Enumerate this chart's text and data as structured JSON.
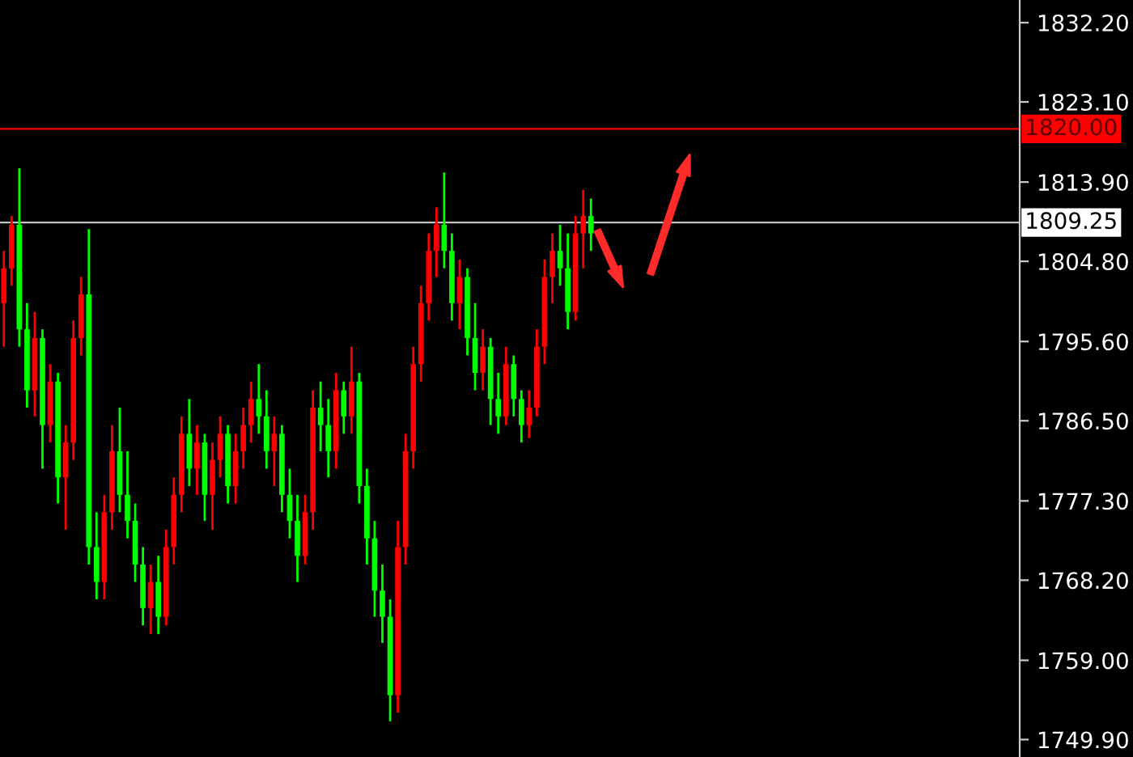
{
  "chart_data": {
    "type": "candlestick",
    "categories": [
      null,
      null,
      null,
      null,
      null,
      null,
      null,
      null,
      null,
      null,
      null,
      null,
      null,
      null,
      null,
      null,
      null,
      null,
      null,
      null,
      null,
      null,
      null,
      null,
      null,
      null,
      null,
      null,
      null,
      null,
      null,
      null,
      null,
      null,
      null,
      null,
      null,
      null,
      null,
      null,
      null,
      null,
      null,
      null,
      null,
      null,
      null,
      null,
      null,
      null,
      null,
      null,
      null,
      null,
      null,
      null,
      null,
      null,
      null,
      null,
      null,
      null,
      null,
      null,
      null,
      null,
      null,
      null,
      null,
      null,
      null,
      null,
      null,
      null,
      null,
      null,
      null,
      null,
      null,
      null,
      null,
      null,
      null,
      null,
      null,
      null,
      null,
      null,
      null,
      null,
      null,
      null,
      null,
      null,
      null,
      null,
      null,
      null,
      null,
      null,
      null,
      null,
      null,
      null,
      null,
      null,
      null,
      null,
      null,
      null,
      null,
      null,
      null,
      null,
      null,
      null,
      null,
      null,
      null,
      null,
      null,
      null,
      null,
      null,
      null,
      null,
      null,
      null,
      null,
      null,
      null,
      null
    ],
    "ohlc": [
      [
        1800,
        1806,
        1795,
        1804
      ],
      [
        1804,
        1810,
        1802,
        1809
      ],
      [
        1809,
        1815.5,
        1795,
        1797
      ],
      [
        1797,
        1800,
        1788,
        1790
      ],
      [
        1790,
        1799,
        1787,
        1796
      ],
      [
        1796,
        1797,
        1781,
        1786
      ],
      [
        1786,
        1793,
        1784,
        1791
      ],
      [
        1791,
        1792,
        1777,
        1780
      ],
      [
        1780,
        1786,
        1774,
        1784
      ],
      [
        1784,
        1798,
        1782,
        1796
      ],
      [
        1796,
        1803,
        1794,
        1801
      ],
      [
        1801,
        1808.5,
        1770,
        1772
      ],
      [
        1772,
        1776,
        1766,
        1768
      ],
      [
        1768,
        1778,
        1766,
        1776
      ],
      [
        1776,
        1786,
        1774,
        1783
      ],
      [
        1783,
        1788,
        1776,
        1778
      ],
      [
        1778,
        1783,
        1773,
        1775
      ],
      [
        1775,
        1777,
        1768,
        1770
      ],
      [
        1770,
        1772,
        1763,
        1765
      ],
      [
        1765,
        1770,
        1762,
        1768
      ],
      [
        1768,
        1771,
        1762,
        1764
      ],
      [
        1764,
        1774,
        1763,
        1772
      ],
      [
        1772,
        1780,
        1770,
        1778
      ],
      [
        1778,
        1787,
        1776,
        1785
      ],
      [
        1785,
        1789,
        1779,
        1781
      ],
      [
        1781,
        1786,
        1778,
        1784
      ],
      [
        1784,
        1785,
        1775,
        1778
      ],
      [
        1778,
        1784,
        1774,
        1782
      ],
      [
        1782,
        1787,
        1780,
        1785
      ],
      [
        1785,
        1786,
        1777,
        1779
      ],
      [
        1779,
        1785,
        1777,
        1783
      ],
      [
        1783,
        1788,
        1781,
        1786
      ],
      [
        1786,
        1791,
        1784,
        1789
      ],
      [
        1789,
        1793,
        1785,
        1787
      ],
      [
        1787,
        1790,
        1781,
        1783
      ],
      [
        1783,
        1787,
        1779,
        1785
      ],
      [
        1785,
        1786,
        1776,
        1778
      ],
      [
        1778,
        1781,
        1773,
        1775
      ],
      [
        1775,
        1778,
        1768,
        1771
      ],
      [
        1771,
        1778,
        1770,
        1776
      ],
      [
        1776,
        1790,
        1774,
        1788
      ],
      [
        1788,
        1791,
        1783,
        1786
      ],
      [
        1786,
        1789,
        1780,
        1783
      ],
      [
        1783,
        1792,
        1781,
        1790
      ],
      [
        1790,
        1791,
        1785,
        1787
      ],
      [
        1787,
        1795,
        1785,
        1791
      ],
      [
        1791,
        1792,
        1777,
        1779
      ],
      [
        1779,
        1781,
        1770,
        1773
      ],
      [
        1773,
        1775,
        1764,
        1767
      ],
      [
        1767,
        1770,
        1761,
        1764
      ],
      [
        1764,
        1766,
        1752,
        1755
      ],
      [
        1755,
        1775,
        1753,
        1772
      ],
      [
        1772,
        1785,
        1770,
        1783
      ],
      [
        1783,
        1795,
        1781,
        1793
      ],
      [
        1793,
        1802,
        1791,
        1800
      ],
      [
        1800,
        1808,
        1798,
        1806
      ],
      [
        1806,
        1811,
        1803,
        1809
      ],
      [
        1809,
        1815,
        1804,
        1806
      ],
      [
        1806,
        1808,
        1798,
        1800
      ],
      [
        1800,
        1805,
        1797,
        1803
      ],
      [
        1803,
        1804,
        1794,
        1796
      ],
      [
        1796,
        1800,
        1790,
        1792
      ],
      [
        1792,
        1797,
        1790,
        1795
      ],
      [
        1795,
        1796,
        1786,
        1789
      ],
      [
        1789,
        1792,
        1785,
        1787
      ],
      [
        1787,
        1795,
        1786,
        1793
      ],
      [
        1793,
        1794,
        1787,
        1789
      ],
      [
        1789,
        1790,
        1784,
        1786
      ],
      [
        1786,
        1790,
        1784.5,
        1788
      ],
      [
        1788,
        1797,
        1787,
        1795
      ],
      [
        1795,
        1805,
        1793,
        1803
      ],
      [
        1803,
        1808,
        1800,
        1806
      ],
      [
        1806,
        1809,
        1802,
        1804
      ],
      [
        1804,
        1808,
        1797,
        1799
      ],
      [
        1799,
        1810,
        1798,
        1808
      ],
      [
        1808,
        1813,
        1804,
        1810
      ],
      [
        1810,
        1812,
        1806,
        1808
      ],
      null,
      null,
      null,
      null,
      null,
      null,
      null,
      null,
      null,
      null,
      null,
      null,
      null,
      null,
      null,
      null,
      null,
      null,
      null,
      null,
      null,
      null,
      null,
      null,
      null,
      null,
      null,
      null,
      null,
      null,
      null,
      null,
      null,
      null,
      null,
      null,
      null,
      null,
      null,
      null,
      null,
      null,
      null,
      null,
      null,
      null,
      null,
      null,
      null,
      null,
      null,
      null,
      null,
      null,
      null
    ],
    "colors": [
      "#ff0000",
      "#ff0000",
      "#00ff00",
      "#00ff00",
      "#ff0000",
      "#00ff00",
      "#ff0000",
      "#00ff00",
      "#ff0000",
      "#ff0000",
      "#ff0000",
      "#00ff00",
      "#00ff00",
      "#ff0000",
      "#ff0000",
      "#00ff00",
      "#00ff00",
      "#00ff00",
      "#00ff00",
      "#ff0000",
      "#00ff00",
      "#ff0000",
      "#ff0000",
      "#ff0000",
      "#00ff00",
      "#ff0000",
      "#00ff00",
      "#ff0000",
      "#ff0000",
      "#00ff00",
      "#ff0000",
      "#ff0000",
      "#ff0000",
      "#00ff00",
      "#00ff00",
      "#ff0000",
      "#00ff00",
      "#00ff00",
      "#00ff00",
      "#ff0000",
      "#ff0000",
      "#00ff00",
      "#00ff00",
      "#ff0000",
      "#00ff00",
      "#ff0000",
      "#00ff00",
      "#00ff00",
      "#00ff00",
      "#00ff00",
      "#00ff00",
      "#ff0000",
      "#ff0000",
      "#ff0000",
      "#ff0000",
      "#ff0000",
      "#ff0000",
      "#00ff00",
      "#00ff00",
      "#ff0000",
      "#00ff00",
      "#00ff00",
      "#ff0000",
      "#00ff00",
      "#00ff00",
      "#ff0000",
      "#00ff00",
      "#00ff00",
      "#ff0000",
      "#ff0000",
      "#ff0000",
      "#ff0000",
      "#00ff00",
      "#00ff00",
      "#ff0000",
      "#ff0000",
      "#00ff00",
      null,
      null,
      null,
      null,
      null,
      null,
      null,
      null,
      null,
      null,
      null,
      null,
      null,
      null,
      null,
      null,
      null,
      null,
      null,
      null,
      null,
      null,
      null,
      null,
      null,
      null,
      null,
      null,
      null,
      null,
      null,
      null,
      null,
      null,
      null,
      null,
      null,
      null,
      null,
      null,
      null,
      null,
      null,
      null,
      null,
      null,
      null,
      null,
      null,
      null,
      null,
      null,
      null,
      null,
      null
    ],
    "ylim": [
      1747.9,
      1834.8
    ],
    "yticks": [
      {
        "value": 1832.2,
        "label": "1832.20"
      },
      {
        "value": 1823.1,
        "label": "1823.10"
      },
      {
        "value": 1813.9,
        "label": "1813.90"
      },
      {
        "value": 1804.8,
        "label": "1804.80"
      },
      {
        "value": 1795.6,
        "label": "1795.60"
      },
      {
        "value": 1786.5,
        "label": "1786.50"
      },
      {
        "value": 1777.3,
        "label": "1777.30"
      },
      {
        "value": 1768.2,
        "label": "1768.20"
      },
      {
        "value": 1759,
        "label": "1759.00"
      },
      {
        "value": 1749.9,
        "label": "1749.90"
      }
    ],
    "ref_lines": [
      {
        "axis": "y",
        "value": 1820,
        "label": "1820.00",
        "color": "#ff0000"
      },
      {
        "axis": "y",
        "value": 1809.25,
        "label": "1809.25",
        "color": "#c0c0c0"
      }
    ],
    "grid": false,
    "tick_labels": "y"
  }
}
